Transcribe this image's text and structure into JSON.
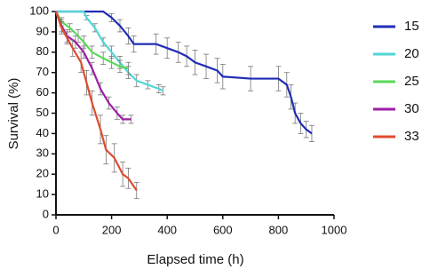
{
  "chart_data": {
    "type": "line",
    "xlabel": "Elapsed time (h)",
    "ylabel": "Survival (%)",
    "xlim": [
      0,
      1000
    ],
    "xticks": [
      0,
      200,
      400,
      600,
      800,
      1000
    ],
    "ylim": [
      0,
      100
    ],
    "yticks": [
      0,
      10,
      20,
      30,
      40,
      50,
      60,
      70,
      80,
      90,
      100
    ],
    "series": [
      {
        "name": "15",
        "color": "#1f2db5",
        "x": [
          0,
          170,
          200,
          230,
          260,
          280,
          360,
          400,
          440,
          470,
          500,
          540,
          580,
          600,
          700,
          800,
          830,
          845,
          860,
          880,
          900,
          920
        ],
        "values": [
          100,
          100,
          97,
          93,
          88,
          84,
          84,
          82,
          80,
          78,
          75,
          73,
          71,
          68,
          67,
          67,
          64,
          58,
          50,
          45,
          42,
          40
        ],
        "errors": [
          0,
          0,
          2,
          3,
          4,
          4,
          5,
          5,
          5,
          5,
          6,
          6,
          6,
          6,
          6,
          6,
          6,
          6,
          5,
          5,
          4,
          4
        ]
      },
      {
        "name": "20",
        "color": "#4fd6d6",
        "x": [
          0,
          100,
          110,
          140,
          170,
          200,
          230,
          260,
          290,
          330,
          370,
          385
        ],
        "values": [
          100,
          100,
          97,
          92,
          85,
          80,
          75,
          70,
          66,
          64,
          62,
          61
        ],
        "errors": [
          0,
          0,
          1,
          2,
          2,
          3,
          3,
          3,
          3,
          2,
          2,
          2
        ]
      },
      {
        "name": "25",
        "color": "#5ad85a",
        "x": [
          0,
          20,
          50,
          80,
          100,
          130,
          170,
          200,
          230,
          260
        ],
        "values": [
          100,
          95,
          92,
          88,
          85,
          80,
          77,
          75,
          73,
          72
        ],
        "errors": [
          0,
          2,
          2,
          3,
          3,
          3,
          3,
          3,
          3,
          3
        ]
      },
      {
        "name": "30",
        "color": "#9b1fa5",
        "x": [
          0,
          20,
          40,
          70,
          100,
          130,
          160,
          190,
          220,
          240,
          270
        ],
        "values": [
          100,
          93,
          88,
          85,
          80,
          72,
          62,
          55,
          50,
          47,
          47
        ],
        "errors": [
          0,
          3,
          3,
          3,
          3,
          3,
          3,
          3,
          3,
          2,
          2
        ]
      },
      {
        "name": "33",
        "color": "#e04a2f",
        "x": [
          0,
          20,
          40,
          60,
          90,
          110,
          130,
          160,
          180,
          210,
          240,
          260,
          290
        ],
        "values": [
          100,
          92,
          87,
          82,
          75,
          65,
          55,
          42,
          32,
          28,
          20,
          18,
          12
        ],
        "errors": [
          0,
          3,
          3,
          4,
          5,
          6,
          6,
          7,
          7,
          7,
          6,
          5,
          4
        ]
      }
    ]
  }
}
